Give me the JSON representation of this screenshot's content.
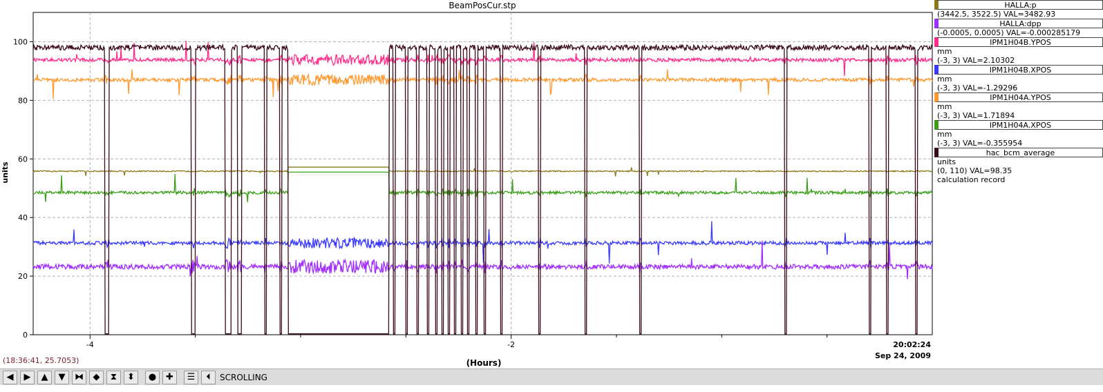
{
  "chart_data": {
    "type": "line",
    "title": "BeamPosCur.stp",
    "ylabel": "units",
    "xlabel": "(Hours)",
    "x_range_hours": [
      -4.27,
      0.0
    ],
    "ylim": [
      0,
      110
    ],
    "y_ticks": [
      "0",
      "20",
      "40",
      "60",
      "80",
      "100"
    ],
    "x_ticks": [
      {
        "value": -4,
        "label": "-4"
      },
      {
        "value": -2,
        "label": "-2"
      }
    ],
    "x_minor_ticks": [
      -3.5,
      -3.0,
      -2.5,
      -1.5,
      -1.0,
      -0.5
    ],
    "grid": true,
    "end_time": "20:02:24",
    "end_date": "Sep 24, 2009",
    "cursor_readout": "(18:36:41, 25.7053)",
    "beam_down_periods_hours": [
      [
        -3.93,
        -3.91
      ],
      [
        -3.52,
        -3.5
      ],
      [
        -3.36,
        -3.33
      ],
      [
        -3.3,
        -3.28
      ],
      [
        -3.17,
        -3.16
      ],
      [
        -3.1,
        -3.09
      ],
      [
        -3.06,
        -2.58
      ],
      [
        -2.56,
        -2.55
      ],
      [
        -2.5,
        -2.49
      ],
      [
        -2.45,
        -2.44
      ],
      [
        -2.4,
        -2.39
      ],
      [
        -2.36,
        -2.35
      ],
      [
        -2.33,
        -2.32
      ],
      [
        -2.3,
        -2.29
      ],
      [
        -2.27,
        -2.26
      ],
      [
        -2.24,
        -2.23
      ],
      [
        -2.21,
        -2.2
      ],
      [
        -2.17,
        -2.16
      ],
      [
        -2.13,
        -2.12
      ],
      [
        -2.05,
        -2.04
      ],
      [
        -1.87,
        -1.86
      ],
      [
        -1.65,
        -1.64
      ],
      [
        -1.39,
        -1.38
      ],
      [
        -0.7,
        -0.69
      ],
      [
        -0.3,
        -0.29
      ],
      [
        -0.22,
        -0.21
      ],
      [
        -0.08,
        -0.07
      ]
    ],
    "series": [
      {
        "name": "HALLA:p",
        "color": "#8b7a1c",
        "level": 55.8,
        "outage_level": 57.2,
        "noise": 0.2
      },
      {
        "name": "IPM1H04A.XPOS",
        "color": "#3aa01a",
        "level": 48.5,
        "outage_level": 55.5,
        "noise": 0.5
      },
      {
        "name": "IPM1H04B.YPOS",
        "color": "#ff2c8c",
        "level": 93.8,
        "noise": 0.6
      },
      {
        "name": "IPM1H04A.YPOS",
        "color": "#ff9a30",
        "level": 87.0,
        "noise": 0.6
      },
      {
        "name": "IPM1H04B.XPOS",
        "color": "#3a3aff",
        "level": 31.3,
        "noise": 0.6
      },
      {
        "name": "HALLA:dpp",
        "color": "#a02cff",
        "level": 23.2,
        "noise": 0.8
      },
      {
        "name": "hac_bcm_average",
        "color": "#3a0a1a",
        "level": 98.0,
        "noise": 0.9
      }
    ]
  },
  "legend": [
    {
      "name": "HALLA:p",
      "color": "#8b7a1c",
      "lines": [
        "(3442.5, 3522.5) VAL=3482.93"
      ]
    },
    {
      "name": "HALLA:dpp",
      "color": "#a02cff",
      "lines": [
        "(-0.0005, 0.0005) VAL=-0.000285179"
      ]
    },
    {
      "name": "IPM1H04B.YPOS",
      "color": "#ff2c8c",
      "lines": [
        "mm",
        "(-3, 3) VAL=2.10302"
      ]
    },
    {
      "name": "IPM1H04B.XPOS",
      "color": "#3a3aff",
      "lines": [
        "mm",
        "(-3, 3) VAL=-1.29296"
      ]
    },
    {
      "name": "IPM1H04A.YPOS",
      "color": "#ff9a30",
      "lines": [
        "mm",
        "(-3, 3) VAL=1.71894"
      ]
    },
    {
      "name": "IPM1H04A.XPOS",
      "color": "#3aa01a",
      "lines": [
        "mm",
        "(-3, 3) VAL=-0.355954"
      ]
    },
    {
      "name": "hac_bcm_average",
      "color": "#3a0a1a",
      "lines": [
        "units",
        "(0, 110) VAL=98.35",
        "calculation record"
      ]
    }
  ],
  "toolbar": {
    "buttons": [
      {
        "name": "scroll-left-button",
        "glyph": "◀"
      },
      {
        "name": "scroll-right-button",
        "glyph": "▶"
      },
      {
        "name": "scroll-up-button",
        "glyph": "▲"
      },
      {
        "name": "scroll-down-button",
        "glyph": "▼"
      },
      {
        "name": "zoom-in-x-button",
        "glyph": "⧓"
      },
      {
        "name": "zoom-out-x-button",
        "glyph": "◆"
      },
      {
        "name": "zoom-in-y-button",
        "glyph": "⧗"
      },
      {
        "name": "zoom-out-y-button",
        "glyph": "⬍"
      },
      {
        "name": "autoscale-button",
        "glyph": "●"
      },
      {
        "name": "add-marker-button",
        "glyph": "✚"
      },
      {
        "name": "config-button",
        "glyph": "☰"
      },
      {
        "name": "back-button",
        "glyph": "⏴"
      }
    ],
    "mode_label": "SCROLLING"
  }
}
